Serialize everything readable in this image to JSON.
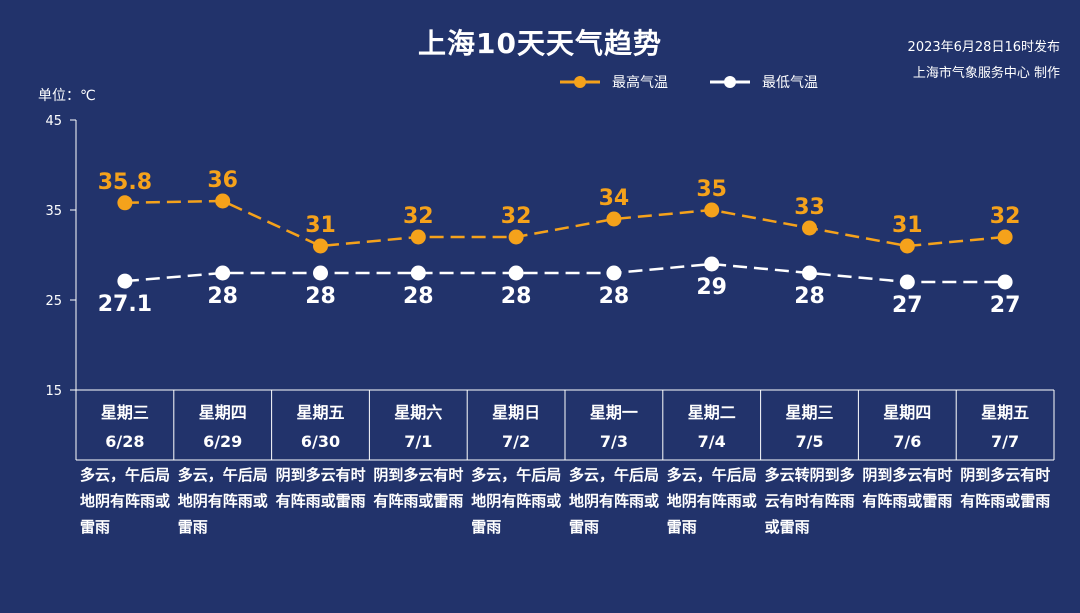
{
  "header": {
    "title": "上海10天天气趋势",
    "issue_time": "2023年6月28日16时发布",
    "issuer": "上海市气象服务中心 制作",
    "unit": "单位：℃"
  },
  "colors": {
    "background": "#22336b",
    "max": "#f5a21b",
    "min": "#ffffff"
  },
  "chart_data": {
    "type": "line",
    "ylim": [
      15,
      45
    ],
    "yticks": [
      15,
      25,
      35,
      45
    ],
    "grid": false,
    "legend": "top-center",
    "categories": [
      "6/28",
      "6/29",
      "6/30",
      "7/1",
      "7/2",
      "7/3",
      "7/4",
      "7/5",
      "7/6",
      "7/7"
    ],
    "weekdays": [
      "星期三",
      "星期四",
      "星期五",
      "星期六",
      "星期日",
      "星期一",
      "星期二",
      "星期三",
      "星期四",
      "星期五"
    ],
    "series": [
      {
        "name": "最高气温",
        "color": "#f5a21b",
        "values": [
          35.8,
          36,
          31,
          32,
          32,
          34,
          35,
          33,
          31,
          32
        ]
      },
      {
        "name": "最低气温",
        "color": "#ffffff",
        "values": [
          27.1,
          28,
          28,
          28,
          28,
          28,
          29,
          28,
          27,
          27
        ]
      }
    ],
    "descriptions": [
      "多云，午后局地阴有阵雨或雷雨",
      "多云，午后局地阴有阵雨或雷雨",
      "阴到多云有时有阵雨或雷雨",
      "阴到多云有时有阵雨或雷雨",
      "多云，午后局地阴有阵雨或雷雨",
      "多云，午后局地阴有阵雨或雷雨",
      "多云，午后局地阴有阵雨或雷雨",
      "多云转阴到多云有时有阵雨或雷雨",
      "阴到多云有时有阵雨或雷雨",
      "阴到多云有时有阵雨或雷雨"
    ]
  }
}
